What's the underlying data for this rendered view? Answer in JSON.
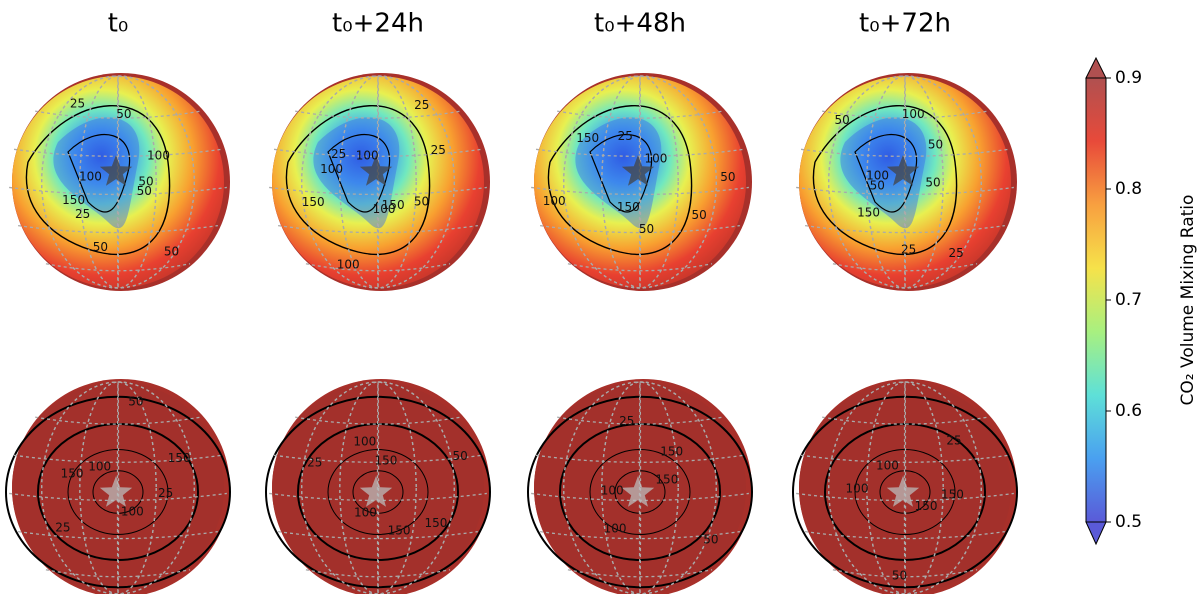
{
  "chart_data": {
    "type": "globe-grid",
    "panel_titles": [
      "t₀",
      "t₀+24h",
      "t₀+48h",
      "t₀+72h"
    ],
    "panels": [
      {
        "contour_labels": [
          50,
          25,
          50,
          50,
          100,
          100,
          50,
          25,
          50,
          150
        ]
      },
      {
        "contour_labels": [
          150,
          100,
          25,
          100,
          100,
          50,
          150,
          25,
          100,
          25
        ]
      },
      {
        "contour_labels": [
          150,
          25,
          50,
          100,
          100,
          50,
          150,
          50
        ]
      },
      {
        "contour_labels": [
          50,
          50,
          25,
          50,
          50,
          150,
          100,
          25,
          100
        ]
      },
      {
        "contour_labels": [
          100,
          25,
          25,
          50,
          100,
          150,
          150
        ]
      },
      {
        "contour_labels": [
          150,
          150,
          25,
          50,
          100,
          100,
          150
        ]
      },
      {
        "contour_labels": [
          150,
          100,
          25,
          50,
          100,
          150
        ]
      },
      {
        "contour_labels": [
          150,
          100,
          25,
          50,
          100,
          150
        ]
      }
    ],
    "colorbar": {
      "label": "CO₂ Volume Mixing Ratio",
      "ylim": [
        0.5,
        0.9
      ],
      "yticks": [
        0.5,
        0.6,
        0.7,
        0.8,
        0.9
      ],
      "colors": [
        "#5a5ad8",
        "#4aa0f0",
        "#5ee0d8",
        "#a8f080",
        "#f6e24a",
        "#f8a040",
        "#e84a3a",
        "#b05050"
      ]
    }
  }
}
